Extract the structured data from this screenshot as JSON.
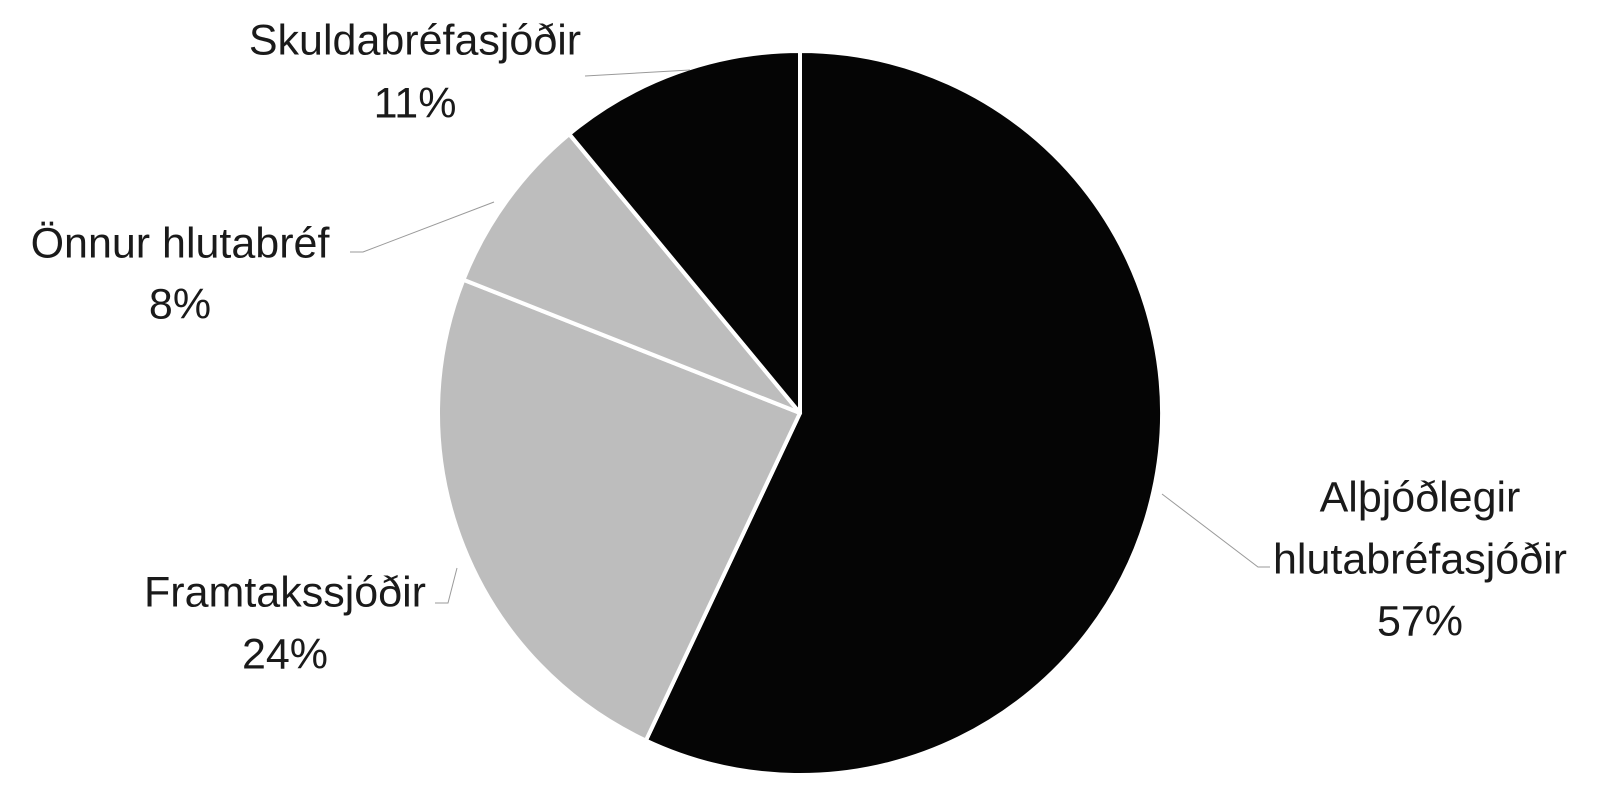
{
  "chart_data": {
    "type": "pie",
    "title": "",
    "start_angle_deg": 0,
    "direction": "clockwise",
    "slices": [
      {
        "label_lines": [
          "Alþjóðlegir",
          "hlutabréfasjóðir"
        ],
        "value": 57,
        "value_label": "57%",
        "color": "#050505"
      },
      {
        "label_lines": [
          "Framtakssjóðir"
        ],
        "value": 24,
        "value_label": "24%",
        "color": "#bdbdbd"
      },
      {
        "label_lines": [
          "Önnur hlutabréf"
        ],
        "value": 8,
        "value_label": "8%",
        "color": "#bdbdbd"
      },
      {
        "label_lines": [
          "Skuldabréfasjóðir"
        ],
        "value": 11,
        "value_label": "11%",
        "color": "#050505"
      }
    ],
    "legend": "none",
    "data_labels": "outside with leader lines"
  }
}
